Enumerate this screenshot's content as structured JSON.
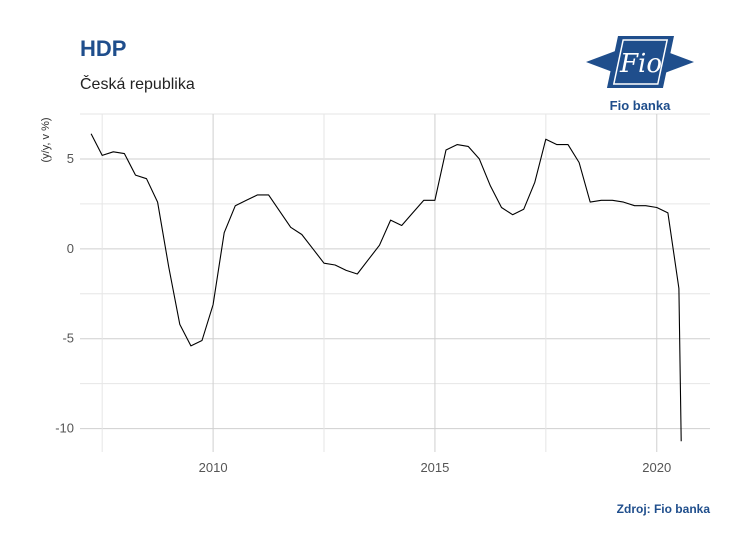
{
  "header": {
    "title": "HDP",
    "subtitle": "Česká republika"
  },
  "logo": {
    "text": "Fio",
    "caption": "Fio banka",
    "color": "#1f4e8c"
  },
  "footer": {
    "source": "Zdroj: Fio banka"
  },
  "chart_data": {
    "type": "line",
    "title": "HDP",
    "subtitle": "Česká republika",
    "ylabel": "(y/y, v %)",
    "xlabel": "",
    "xlim": [
      2007.0,
      2021.2
    ],
    "ylim": [
      -11.3,
      7.5
    ],
    "x_ticks": [
      2010,
      2015,
      2020
    ],
    "x_tick_labels": [
      "2010",
      "2015",
      "2020"
    ],
    "y_ticks": [
      5,
      0,
      -5,
      -10
    ],
    "y_tick_labels": [
      "5",
      "0",
      "-5",
      "-10"
    ],
    "grid": true,
    "line_color": "#000000",
    "series": [
      {
        "x": [
          2007.25,
          2007.5,
          2007.75,
          2008.0,
          2008.25,
          2008.5,
          2008.75,
          2009.0,
          2009.25,
          2009.5,
          2009.75,
          2010.0,
          2010.25,
          2010.5,
          2010.75,
          2011.0,
          2011.25,
          2011.5,
          2011.75,
          2012.0,
          2012.25,
          2012.5,
          2012.75,
          2013.0,
          2013.25,
          2013.5,
          2013.75,
          2014.0,
          2014.25,
          2014.5,
          2014.75,
          2015.0,
          2015.25,
          2015.5,
          2015.75,
          2016.0,
          2016.25,
          2016.5,
          2016.75,
          2017.0,
          2017.25,
          2017.5,
          2017.75,
          2018.0,
          2018.25,
          2018.5,
          2018.75,
          2019.0,
          2019.25,
          2019.5,
          2019.75,
          2020.0,
          2020.25,
          2020.5
        ],
        "y": [
          6.4,
          5.2,
          5.4,
          5.3,
          4.1,
          3.9,
          2.6,
          -1.0,
          -4.2,
          -5.4,
          -5.1,
          -3.1,
          0.9,
          2.4,
          2.7,
          3.0,
          3.0,
          2.1,
          1.2,
          0.8,
          0.0,
          -0.8,
          -0.9,
          -1.2,
          -1.4,
          -0.6,
          0.2,
          1.6,
          1.3,
          2.0,
          2.7,
          2.7,
          5.5,
          5.8,
          5.7,
          5.0,
          3.5,
          2.3,
          1.9,
          2.2,
          3.7,
          6.1,
          5.8,
          5.8,
          4.8,
          2.6,
          2.7,
          2.7,
          2.6,
          2.4,
          2.4,
          2.3,
          2.0,
          -2.2
        ]
      }
    ],
    "extra_points": [
      {
        "x": 2020.55,
        "y": -10.7
      }
    ]
  }
}
